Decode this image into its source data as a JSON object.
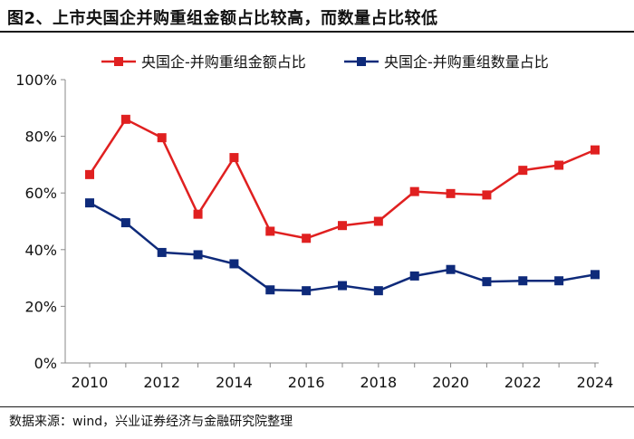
{
  "header": {
    "title": "图2、上市央国企并购重组金额占比较高，而数量占比较低"
  },
  "footer": {
    "source": "数据来源：wind，兴业证券经济与金融研究院整理"
  },
  "colors": {
    "series_amount": "#e02020",
    "series_count": "#0e2a7a",
    "axis": "#888888"
  },
  "chart_data": {
    "type": "line",
    "title": "",
    "xlabel": "",
    "ylabel": "",
    "ylim": [
      0,
      100
    ],
    "grid": false,
    "legend": "top",
    "x": [
      2010,
      2011,
      2012,
      2013,
      2014,
      2015,
      2016,
      2017,
      2018,
      2019,
      2020,
      2021,
      2022,
      2023,
      2024
    ],
    "x_tick_labels": [
      "2010",
      "2012",
      "2014",
      "2016",
      "2018",
      "2020",
      "2022",
      "2024"
    ],
    "x_tick_values": [
      2010,
      2012,
      2014,
      2016,
      2018,
      2020,
      2022,
      2024
    ],
    "y_tick_labels": [
      "0%",
      "20%",
      "40%",
      "60%",
      "80%",
      "100%"
    ],
    "y_tick_values": [
      0,
      20,
      40,
      60,
      80,
      100
    ],
    "series": [
      {
        "name": "央国企-并购重组金额占比",
        "color": "#e02020",
        "values": [
          66.5,
          86.0,
          79.5,
          52.5,
          72.5,
          46.5,
          44.0,
          48.5,
          50.0,
          60.5,
          59.8,
          59.3,
          68.0,
          69.8,
          75.2
        ]
      },
      {
        "name": "央国企-并购重组数量占比",
        "color": "#0e2a7a",
        "values": [
          56.5,
          49.5,
          39.0,
          38.2,
          35.0,
          25.8,
          25.5,
          27.3,
          25.5,
          30.7,
          33.0,
          28.7,
          29.0,
          29.0,
          31.2
        ]
      }
    ]
  }
}
